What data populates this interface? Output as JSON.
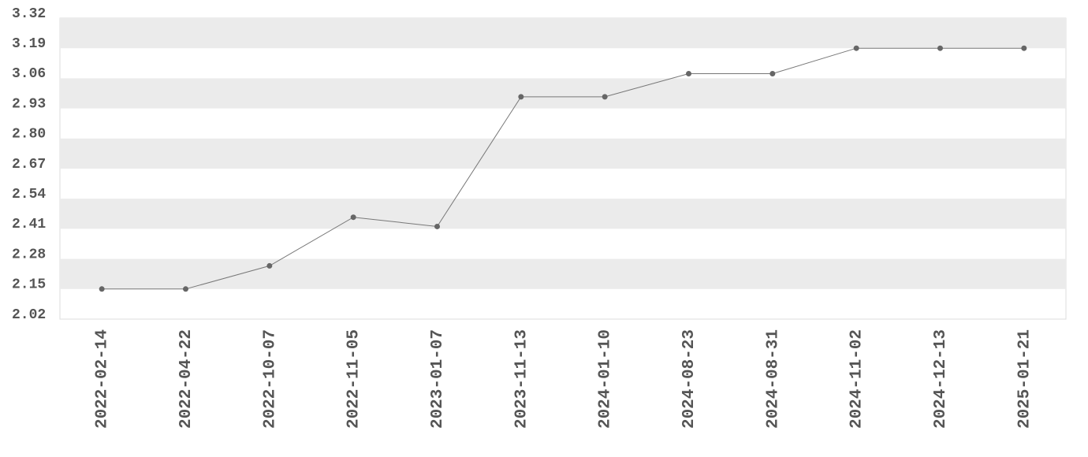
{
  "chart_data": {
    "type": "line",
    "categories": [
      "2022-02-14",
      "2022-04-22",
      "2022-10-07",
      "2022-11-05",
      "2023-01-07",
      "2023-11-13",
      "2024-01-10",
      "2024-08-23",
      "2024-08-31",
      "2024-11-02",
      "2024-12-13",
      "2025-01-21"
    ],
    "series": [
      {
        "color": "#777777",
        "values": [
          2.15,
          2.15,
          2.25,
          2.46,
          2.42,
          2.98,
          2.98,
          3.08,
          3.08,
          3.19,
          3.19,
          3.19
        ]
      }
    ],
    "ylim": [
      2.02,
      3.32
    ],
    "yticks": [
      {
        "value": 2.02,
        "label": "2.02"
      },
      {
        "value": 2.15,
        "label": "2.15"
      },
      {
        "value": 2.28,
        "label": "2.28"
      },
      {
        "value": 2.41,
        "label": "2.41"
      },
      {
        "value": 2.54,
        "label": "2.54"
      },
      {
        "value": 2.67,
        "label": "2.67"
      },
      {
        "value": 2.8,
        "label": "2.80"
      },
      {
        "value": 2.93,
        "label": "2.93"
      },
      {
        "value": 3.06,
        "label": "3.06"
      },
      {
        "value": 3.19,
        "label": "3.19"
      },
      {
        "value": 3.32,
        "label": "3.32"
      }
    ],
    "grid": true
  }
}
